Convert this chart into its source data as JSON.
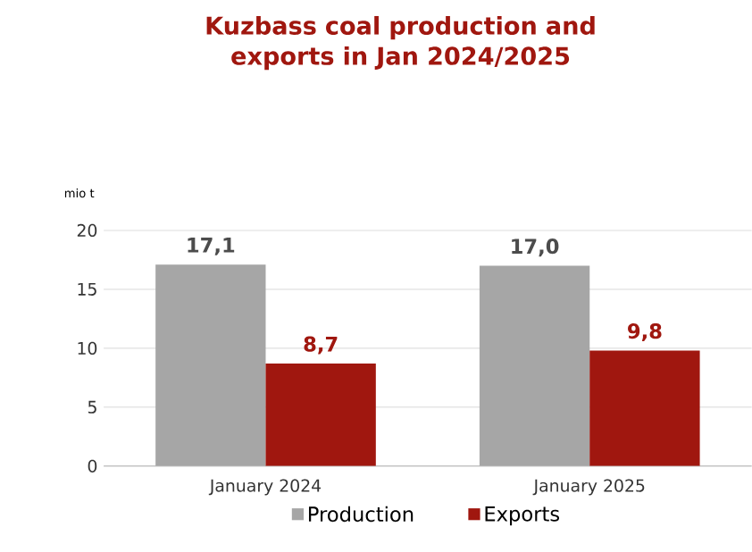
{
  "chart_data": {
    "type": "bar",
    "title": "Kuzbass coal production and exports in Jan 2024/2025",
    "ylabel": "mio t",
    "categories": [
      "January 2024",
      "January 2025"
    ],
    "series": [
      {
        "name": "Production",
        "color": "#a6a6a6",
        "values": [
          17.1,
          17.0
        ],
        "value_labels": [
          "17,1",
          "17,0"
        ]
      },
      {
        "name": "Exports",
        "color": "#a0170f",
        "values": [
          8.7,
          9.8
        ],
        "value_labels": [
          "8,7",
          "9,8"
        ]
      }
    ],
    "ylim": [
      0,
      20
    ],
    "yticks": [
      0,
      5,
      10,
      15,
      20
    ],
    "grid": "y",
    "legend": "bottom"
  }
}
